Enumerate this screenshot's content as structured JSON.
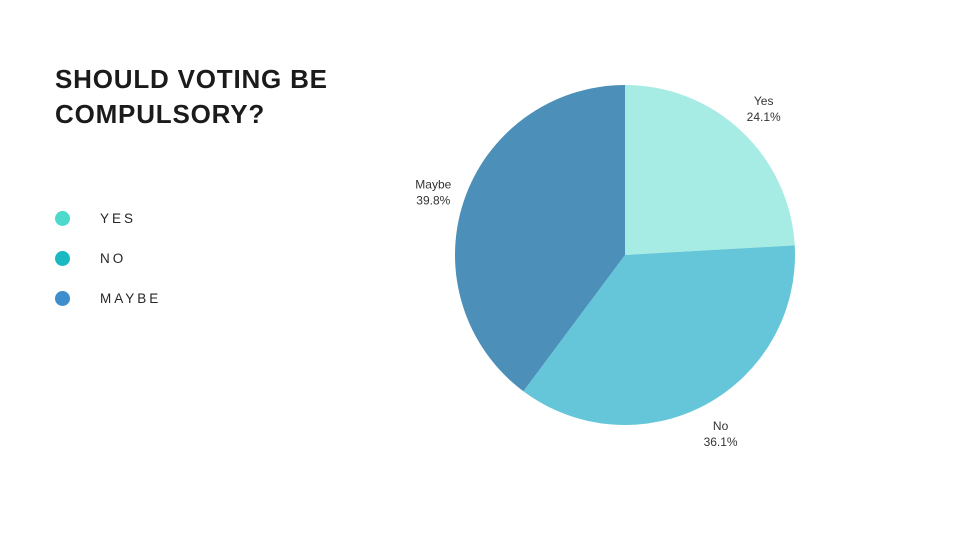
{
  "title": "SHOULD VOTING BE COMPULSORY?",
  "legend": {
    "items": [
      {
        "label": "YES",
        "color": "#4ed9cd"
      },
      {
        "label": "NO",
        "color": "#19b9c4"
      },
      {
        "label": "MAYBE",
        "color": "#3e8ecd"
      }
    ]
  },
  "chart_data": {
    "type": "pie",
    "title": "Should voting be compulsory?",
    "categories": [
      "Yes",
      "No",
      "Maybe"
    ],
    "values": [
      24.1,
      36.1,
      39.8
    ],
    "value_labels": [
      "24.1%",
      "36.1%",
      "39.8%"
    ],
    "slice_colors": [
      "#a6ebe4",
      "#66c6d9",
      "#4c8fb9"
    ],
    "start_angle_deg": 0,
    "direction": "clockwise",
    "legend_position": "left",
    "label_position": "outside"
  }
}
